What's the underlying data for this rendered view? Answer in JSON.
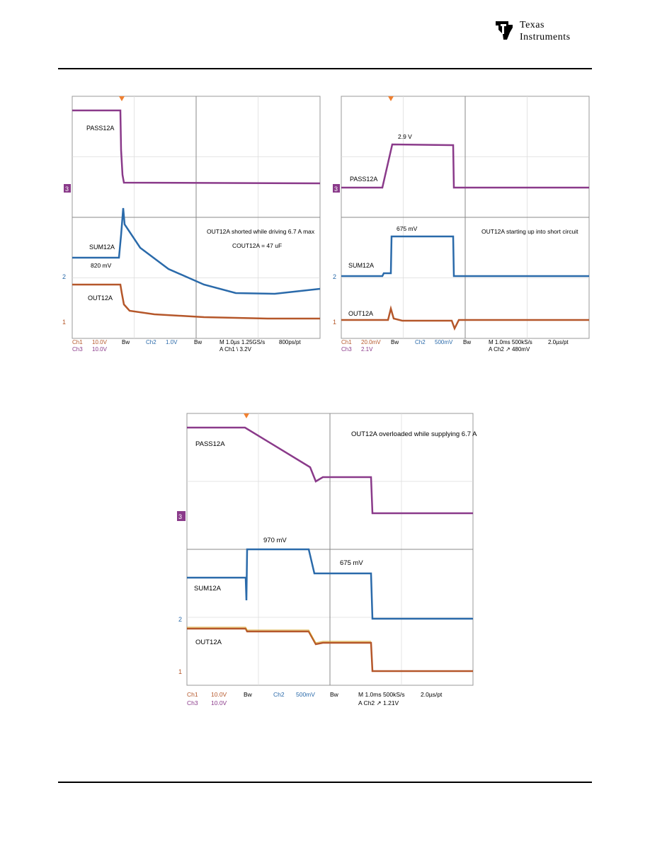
{
  "header": {
    "logo_line1": "Texas",
    "logo_line2": "Instruments",
    "logo_icon": "ti-logo-icon"
  },
  "scopes": [
    {
      "id": "shorted",
      "trace_labels": {
        "top": "PASS12A",
        "mid": "SUM12A",
        "bot": "OUT12A"
      },
      "annotations": [
        "OUT12A shorted while driving 6.7 A max",
        "COUT12A = 47 uF",
        "820 mV"
      ],
      "readout_line1": [
        "Ch1",
        "10.0V",
        "Bw",
        "Ch2",
        "1.0V",
        "Bw",
        "M 1.0µs 1.25GS/s",
        "800ps/pt"
      ],
      "readout_line2": [
        "Ch3",
        "10.0V",
        "A Ch1 \\ 3.2V"
      ],
      "markers": [
        "3",
        "2",
        "1"
      ],
      "colors": {
        "ch1": "#b5572a",
        "ch2": "#2a6aaa",
        "ch3": "#8a3a8a"
      }
    },
    {
      "id": "startup",
      "trace_labels": {
        "top": "PASS12A",
        "mid": "SUM12A",
        "bot": "OUT12A"
      },
      "annotations": [
        "2.9 V",
        "675 mV",
        "OUT12A starting up into short circuit"
      ],
      "readout_line1": [
        "Ch1",
        "20.0mV",
        "Bw",
        "Ch2",
        "500mV",
        "Bw",
        "M 1.0ms 500kS/s",
        "2.0µs/pt"
      ],
      "readout_line2": [
        "Ch3",
        "2.1V",
        "A Ch2 ↗ 480mV"
      ],
      "markers": [
        "3",
        "2",
        "1"
      ]
    },
    {
      "id": "overload",
      "trace_labels": {
        "top": "PASS12A",
        "mid": "SUM12A",
        "bot": "OUT12A"
      },
      "annotations": [
        "OUT12A overloaded while supplying 6.7 A",
        "970 mV",
        "675 mV"
      ],
      "readout_line1": [
        "Ch1",
        "10.0V",
        "Bw",
        "Ch2",
        "500mV",
        "Bw",
        "M 1.0ms 500kS/s",
        "2.0µs/pt"
      ],
      "readout_line2": [
        "Ch3",
        "10.0V",
        "A Ch2 ↗ 1.21V"
      ],
      "markers": [
        "3",
        "2",
        "1"
      ]
    }
  ]
}
